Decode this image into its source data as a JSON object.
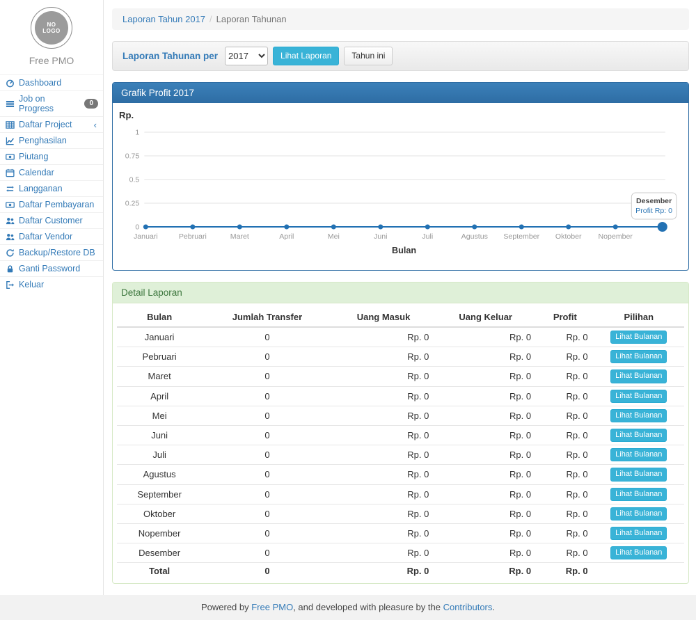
{
  "sidebar": {
    "logo_text": "NO\nLOGO",
    "brand": "Free PMO",
    "items": [
      {
        "label": "Dashboard",
        "icon": "dashboard-icon"
      },
      {
        "label": "Job on Progress",
        "icon": "tasks-icon",
        "badge": "0"
      },
      {
        "label": "Daftar Project",
        "icon": "table-icon",
        "chevron": "‹"
      },
      {
        "label": "Penghasilan",
        "icon": "line-chart-icon"
      },
      {
        "label": "Piutang",
        "icon": "money-icon"
      },
      {
        "label": "Calendar",
        "icon": "calendar-icon"
      },
      {
        "label": "Langganan",
        "icon": "retweet-icon"
      },
      {
        "label": "Daftar Pembayaran",
        "icon": "money-icon"
      },
      {
        "label": "Daftar Customer",
        "icon": "users-icon"
      },
      {
        "label": "Daftar Vendor",
        "icon": "users-icon"
      },
      {
        "label": "Backup/Restore DB",
        "icon": "refresh-icon"
      },
      {
        "label": "Ganti Password",
        "icon": "lock-icon"
      },
      {
        "label": "Keluar",
        "icon": "sign-out-icon"
      }
    ]
  },
  "breadcrumb": {
    "link": "Laporan Tahun 2017",
    "separator": "/",
    "current": "Laporan Tahunan"
  },
  "filter": {
    "label": "Laporan Tahunan per",
    "year_value": "2017",
    "submit_label": "Lihat Laporan",
    "current_year_label": "Tahun ini"
  },
  "chart_panel": {
    "title": "Grafik Profit 2017"
  },
  "chart_data": {
    "type": "line",
    "title": "Grafik Profit 2017",
    "ylabel": "Rp.",
    "xlabel": "Bulan",
    "x": [
      "Januari",
      "Pebruari",
      "Maret",
      "April",
      "Mei",
      "Juni",
      "Juli",
      "Agustus",
      "September",
      "Oktober",
      "Nopember",
      "Desember"
    ],
    "values": [
      0,
      0,
      0,
      0,
      0,
      0,
      0,
      0,
      0,
      0,
      0,
      0
    ],
    "yticks": [
      0,
      0.25,
      0.5,
      0.75,
      1
    ],
    "ylim": [
      0,
      1
    ],
    "grid": true,
    "legend": "none",
    "x_tick_labels_visible": [
      "Januari",
      "Pebruari",
      "Maret",
      "April",
      "Mei",
      "Juni",
      "Juli",
      "Agustus",
      "September",
      "Oktober",
      "Nopember"
    ],
    "tooltip": {
      "title": "Desember",
      "text": "Profit Rp: 0"
    }
  },
  "detail_panel": {
    "title": "Detail Laporan"
  },
  "table": {
    "headers": [
      "Bulan",
      "Jumlah Transfer",
      "Uang Masuk",
      "Uang Keluar",
      "Profit",
      "Pilihan"
    ],
    "action_label": "Lihat Bulanan",
    "rows": [
      {
        "bulan": "Januari",
        "jumlah_transfer": "0",
        "uang_masuk": "Rp. 0",
        "uang_keluar": "Rp. 0",
        "profit": "Rp. 0"
      },
      {
        "bulan": "Pebruari",
        "jumlah_transfer": "0",
        "uang_masuk": "Rp. 0",
        "uang_keluar": "Rp. 0",
        "profit": "Rp. 0"
      },
      {
        "bulan": "Maret",
        "jumlah_transfer": "0",
        "uang_masuk": "Rp. 0",
        "uang_keluar": "Rp. 0",
        "profit": "Rp. 0"
      },
      {
        "bulan": "April",
        "jumlah_transfer": "0",
        "uang_masuk": "Rp. 0",
        "uang_keluar": "Rp. 0",
        "profit": "Rp. 0"
      },
      {
        "bulan": "Mei",
        "jumlah_transfer": "0",
        "uang_masuk": "Rp. 0",
        "uang_keluar": "Rp. 0",
        "profit": "Rp. 0"
      },
      {
        "bulan": "Juni",
        "jumlah_transfer": "0",
        "uang_masuk": "Rp. 0",
        "uang_keluar": "Rp. 0",
        "profit": "Rp. 0"
      },
      {
        "bulan": "Juli",
        "jumlah_transfer": "0",
        "uang_masuk": "Rp. 0",
        "uang_keluar": "Rp. 0",
        "profit": "Rp. 0"
      },
      {
        "bulan": "Agustus",
        "jumlah_transfer": "0",
        "uang_masuk": "Rp. 0",
        "uang_keluar": "Rp. 0",
        "profit": "Rp. 0"
      },
      {
        "bulan": "September",
        "jumlah_transfer": "0",
        "uang_masuk": "Rp. 0",
        "uang_keluar": "Rp. 0",
        "profit": "Rp. 0"
      },
      {
        "bulan": "Oktober",
        "jumlah_transfer": "0",
        "uang_masuk": "Rp. 0",
        "uang_keluar": "Rp. 0",
        "profit": "Rp. 0"
      },
      {
        "bulan": "Nopember",
        "jumlah_transfer": "0",
        "uang_masuk": "Rp. 0",
        "uang_keluar": "Rp. 0",
        "profit": "Rp. 0"
      },
      {
        "bulan": "Desember",
        "jumlah_transfer": "0",
        "uang_masuk": "Rp. 0",
        "uang_keluar": "Rp. 0",
        "profit": "Rp. 0"
      }
    ],
    "total": {
      "bulan": "Total",
      "jumlah_transfer": "0",
      "uang_masuk": "Rp. 0",
      "uang_keluar": "Rp. 0",
      "profit": "Rp. 0"
    }
  },
  "footer": {
    "prefix": "Powered by ",
    "link1": "Free PMO",
    "middle": ", and developed with pleasure by the ",
    "link2": "Contributors",
    "suffix": "."
  },
  "colors": {
    "accent": "#337ab7",
    "panel_primary": "#2e6da4",
    "panel_success_bg": "#dff0d8",
    "panel_success_text": "#3c763d",
    "btn_info": "#39b3d7",
    "chart_line": "#2271b3",
    "badge": "#777777",
    "gridline": "#e3e3e3",
    "tick_text": "#999999"
  }
}
